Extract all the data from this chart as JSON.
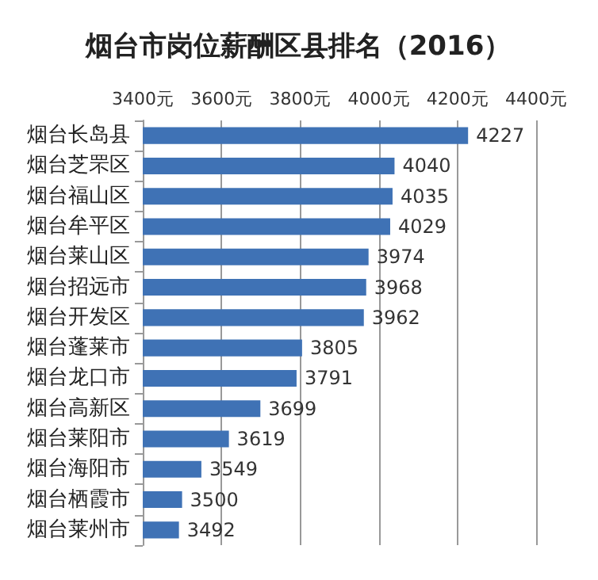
{
  "chart_data": {
    "type": "bar",
    "orientation": "horizontal",
    "title": "烟台市岗位薪酬区县排名（2016）",
    "categories": [
      "烟台长岛县",
      "烟台芝罘区",
      "烟台福山区",
      "烟台牟平区",
      "烟台莱山区",
      "烟台招远市",
      "烟台开发区",
      "烟台蓬莱市",
      "烟台龙口市",
      "烟台高新区",
      "烟台莱阳市",
      "烟台海阳市",
      "烟台栖霞市",
      "烟台莱州市"
    ],
    "values": [
      4227,
      4040,
      4035,
      4029,
      3974,
      3968,
      3962,
      3805,
      3791,
      3699,
      3619,
      3549,
      3500,
      3492
    ],
    "color": "#3f72b5",
    "xlim": [
      3400,
      4400
    ],
    "xticks": [
      {
        "value": 3400,
        "label": "3400元"
      },
      {
        "value": 3600,
        "label": "3600元"
      },
      {
        "value": 3800,
        "label": "3800元"
      },
      {
        "value": 4000,
        "label": "4000元"
      },
      {
        "value": 4200,
        "label": "4200元"
      },
      {
        "value": 4400,
        "label": "4400元"
      }
    ],
    "grid": "x",
    "data_labels": true
  }
}
